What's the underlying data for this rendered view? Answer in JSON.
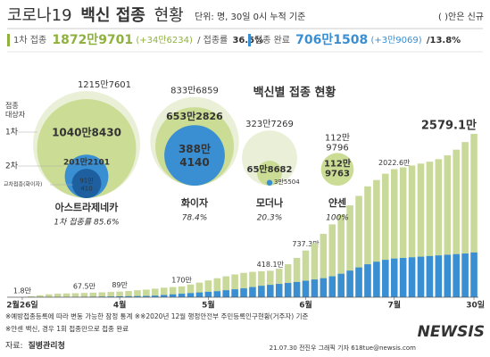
{
  "header": {
    "title_parts": [
      "코로나19",
      "백신 접종",
      "현황"
    ],
    "unit": "단위: 명, 30일 0시 누적 기준",
    "note": "( )안은 신규",
    "first": {
      "label": "1차 접종",
      "count": "1872만9701",
      "new": "(+34만6234)",
      "rate_label": "/ 접종률",
      "rate": "36.5%"
    },
    "complete": {
      "label": "접종 완료",
      "count": "706만1508",
      "new": "(+3만9069)",
      "rate": "/13.8%"
    }
  },
  "vaccines": {
    "title": "백신별 접종 현황",
    "target_label": [
      "접종",
      "대상자"
    ],
    "first_label": "1차",
    "second_label": "2차",
    "cross_label": "교차접종(화이자)",
    "items": [
      {
        "name": "아스트라제네카",
        "rate": "1차 접종률 85.6%",
        "target": {
          "value": 12157601,
          "label": "1215만7601"
        },
        "first": {
          "value": 10408430,
          "label": "1040만8430"
        },
        "second": {
          "value": 2012101,
          "label": "201만2101"
        },
        "cross": {
          "value": 910410,
          "label": "91만 410"
        }
      },
      {
        "name": "화이자",
        "rate": "78.4%",
        "target": {
          "value": 8336859,
          "label": "833만6859"
        },
        "first": {
          "value": 6532826,
          "label": "653만2826"
        },
        "second": {
          "value": 3884140,
          "label": "388만 4140"
        }
      },
      {
        "name": "모더나",
        "rate": "20.3%",
        "target": {
          "value": 3237269,
          "label": "323만7269"
        },
        "first": {
          "value": 658682,
          "label": "65만8682"
        },
        "second": {
          "value": 35504,
          "label": "3만5504"
        }
      },
      {
        "name": "얀센",
        "rate": "100%",
        "target": {
          "value": 1129796,
          "label": "112만 9796"
        },
        "first": {
          "value": 1129763,
          "label": "112만 9763"
        }
      }
    ]
  },
  "chart_data": {
    "type": "bar",
    "categories": [
      "2월26일",
      null,
      null,
      null,
      null,
      null,
      null,
      null,
      null,
      null,
      null,
      "4월",
      null,
      null,
      null,
      null,
      null,
      null,
      null,
      null,
      null,
      "5월",
      null,
      null,
      null,
      null,
      null,
      null,
      null,
      null,
      null,
      null,
      "6월",
      null,
      null,
      null,
      null,
      null,
      null,
      null,
      null,
      null,
      "7월",
      null,
      null,
      null,
      null,
      null,
      null,
      null,
      null,
      "30일"
    ],
    "series": [
      {
        "color": "#c9d99a",
        "values": [
          1.8,
          15,
          30,
          45,
          55,
          60,
          63,
          67.5,
          72,
          77,
          83,
          89,
          98,
          110,
          120,
          135,
          150,
          160,
          170,
          200,
          230,
          265,
          300,
          330,
          360,
          385,
          400,
          410,
          418.1,
          450,
          520,
          620,
          737.3,
          850,
          1000,
          1150,
          1300,
          1450,
          1600,
          1750,
          1850,
          1950,
          2022.6,
          2050,
          2080,
          2110,
          2140,
          2180,
          2240,
          2330,
          2450,
          2579.1
        ],
        "value_labels": [
          "1.8만",
          null,
          null,
          null,
          null,
          null,
          null,
          "67.5만",
          null,
          null,
          null,
          "89만",
          null,
          null,
          null,
          null,
          null,
          null,
          "170만",
          null,
          null,
          null,
          null,
          null,
          null,
          null,
          null,
          null,
          "418.1만",
          null,
          null,
          null,
          "737.3만",
          null,
          null,
          null,
          null,
          null,
          null,
          null,
          null,
          null,
          "2022.6만",
          null,
          null,
          null,
          null,
          null,
          null,
          null,
          null,
          "2579.1만"
        ]
      },
      {
        "color": "#3a8fd3",
        "values": [
          0,
          0,
          0,
          0,
          0,
          0,
          2,
          5,
          8,
          10,
          12,
          14,
          16,
          18,
          20,
          25,
          35,
          45,
          55,
          65,
          75,
          85,
          95,
          110,
          125,
          140,
          160,
          180,
          195,
          210,
          225,
          240,
          260,
          280,
          300,
          330,
          370,
          420,
          470,
          520,
          560,
          590,
          610,
          620,
          630,
          640,
          650,
          660,
          670,
          680,
          690,
          706.2
        ]
      }
    ]
  },
  "footer": {
    "note1": "※예방접종등록에 따라 변동 가능한 잠정 통계 ※※2020년 12월 행정안전부 주민등록인구현황(거주자) 기준",
    "note2": "※얀센 백신, 경우 1회 접종만으로 접종 완료",
    "source_label": "자료:",
    "source": "질병관리청",
    "credit": "21.07.30 전진우 그래픽 기자 618tue@newsis.com",
    "logo": "NEWSIS"
  }
}
